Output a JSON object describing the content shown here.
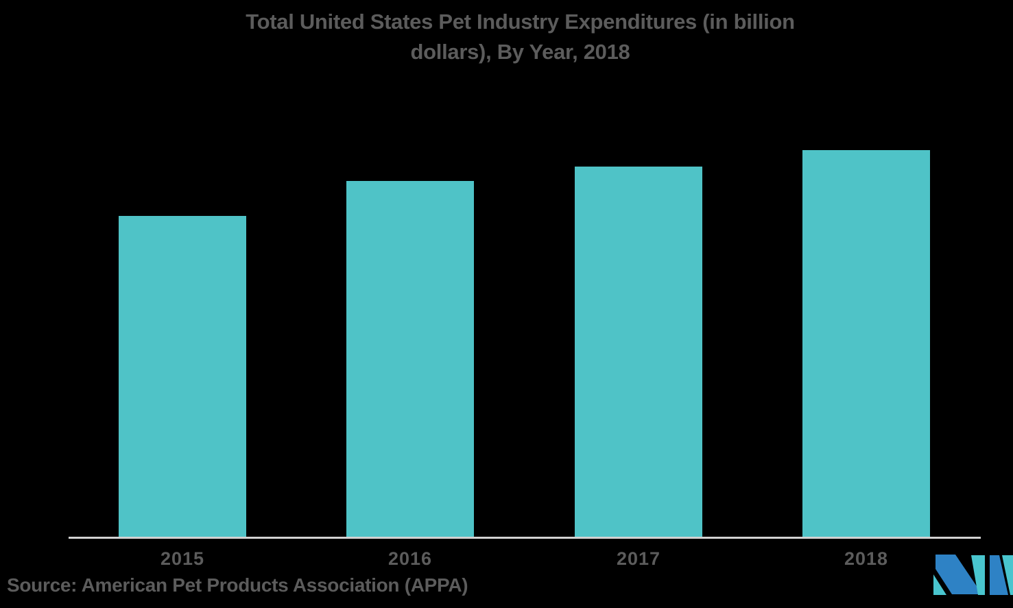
{
  "chart_data": {
    "type": "bar",
    "title": "Total United States Pet Industry Expenditures (in billion dollars), By Year, 2018",
    "title_lines": [
      "Total United States Pet Industry Expenditures (in billion",
      "dollars), By Year, 2018"
    ],
    "categories": [
      "2015",
      "2016",
      "2017",
      "2018"
    ],
    "values": [
      60.28,
      66.75,
      69.51,
      72.56
    ],
    "unit": "billion dollars",
    "xlabel": "",
    "ylabel": "",
    "ylim": [
      0,
      88
    ],
    "grid": false,
    "legend": false,
    "y_axis_visible": false,
    "bar_color": "#4FC3C7",
    "axis_line_color": "#D2D2D2",
    "text_color": "#5C5C5C",
    "background_color": "#000000"
  },
  "source": {
    "label": "Source: American Pet Products Association (APPA)"
  },
  "logo": {
    "name": "mordor-intelligence-logo",
    "teal": "#49C5CE",
    "blue": "#2E82C5"
  }
}
